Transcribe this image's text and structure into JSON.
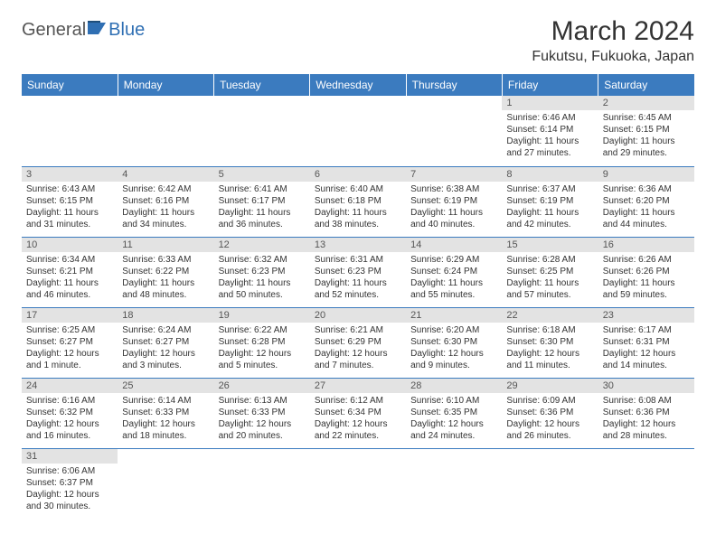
{
  "brand": {
    "part1": "General",
    "part2": "Blue"
  },
  "title": "March 2024",
  "location": "Fukutsu, Fukuoka, Japan",
  "colors": {
    "header_bg": "#3b7bbf",
    "header_fg": "#ffffff",
    "daynum_bg": "#e3e3e3",
    "cell_border": "#3b7bbf",
    "text": "#333333"
  },
  "daynames": [
    "Sunday",
    "Monday",
    "Tuesday",
    "Wednesday",
    "Thursday",
    "Friday",
    "Saturday"
  ],
  "weeks": [
    [
      null,
      null,
      null,
      null,
      null,
      {
        "n": "1",
        "sr": "Sunrise: 6:46 AM",
        "ss": "Sunset: 6:14 PM",
        "dl1": "Daylight: 11 hours",
        "dl2": "and 27 minutes."
      },
      {
        "n": "2",
        "sr": "Sunrise: 6:45 AM",
        "ss": "Sunset: 6:15 PM",
        "dl1": "Daylight: 11 hours",
        "dl2": "and 29 minutes."
      }
    ],
    [
      {
        "n": "3",
        "sr": "Sunrise: 6:43 AM",
        "ss": "Sunset: 6:15 PM",
        "dl1": "Daylight: 11 hours",
        "dl2": "and 31 minutes."
      },
      {
        "n": "4",
        "sr": "Sunrise: 6:42 AM",
        "ss": "Sunset: 6:16 PM",
        "dl1": "Daylight: 11 hours",
        "dl2": "and 34 minutes."
      },
      {
        "n": "5",
        "sr": "Sunrise: 6:41 AM",
        "ss": "Sunset: 6:17 PM",
        "dl1": "Daylight: 11 hours",
        "dl2": "and 36 minutes."
      },
      {
        "n": "6",
        "sr": "Sunrise: 6:40 AM",
        "ss": "Sunset: 6:18 PM",
        "dl1": "Daylight: 11 hours",
        "dl2": "and 38 minutes."
      },
      {
        "n": "7",
        "sr": "Sunrise: 6:38 AM",
        "ss": "Sunset: 6:19 PM",
        "dl1": "Daylight: 11 hours",
        "dl2": "and 40 minutes."
      },
      {
        "n": "8",
        "sr": "Sunrise: 6:37 AM",
        "ss": "Sunset: 6:19 PM",
        "dl1": "Daylight: 11 hours",
        "dl2": "and 42 minutes."
      },
      {
        "n": "9",
        "sr": "Sunrise: 6:36 AM",
        "ss": "Sunset: 6:20 PM",
        "dl1": "Daylight: 11 hours",
        "dl2": "and 44 minutes."
      }
    ],
    [
      {
        "n": "10",
        "sr": "Sunrise: 6:34 AM",
        "ss": "Sunset: 6:21 PM",
        "dl1": "Daylight: 11 hours",
        "dl2": "and 46 minutes."
      },
      {
        "n": "11",
        "sr": "Sunrise: 6:33 AM",
        "ss": "Sunset: 6:22 PM",
        "dl1": "Daylight: 11 hours",
        "dl2": "and 48 minutes."
      },
      {
        "n": "12",
        "sr": "Sunrise: 6:32 AM",
        "ss": "Sunset: 6:23 PM",
        "dl1": "Daylight: 11 hours",
        "dl2": "and 50 minutes."
      },
      {
        "n": "13",
        "sr": "Sunrise: 6:31 AM",
        "ss": "Sunset: 6:23 PM",
        "dl1": "Daylight: 11 hours",
        "dl2": "and 52 minutes."
      },
      {
        "n": "14",
        "sr": "Sunrise: 6:29 AM",
        "ss": "Sunset: 6:24 PM",
        "dl1": "Daylight: 11 hours",
        "dl2": "and 55 minutes."
      },
      {
        "n": "15",
        "sr": "Sunrise: 6:28 AM",
        "ss": "Sunset: 6:25 PM",
        "dl1": "Daylight: 11 hours",
        "dl2": "and 57 minutes."
      },
      {
        "n": "16",
        "sr": "Sunrise: 6:26 AM",
        "ss": "Sunset: 6:26 PM",
        "dl1": "Daylight: 11 hours",
        "dl2": "and 59 minutes."
      }
    ],
    [
      {
        "n": "17",
        "sr": "Sunrise: 6:25 AM",
        "ss": "Sunset: 6:27 PM",
        "dl1": "Daylight: 12 hours",
        "dl2": "and 1 minute."
      },
      {
        "n": "18",
        "sr": "Sunrise: 6:24 AM",
        "ss": "Sunset: 6:27 PM",
        "dl1": "Daylight: 12 hours",
        "dl2": "and 3 minutes."
      },
      {
        "n": "19",
        "sr": "Sunrise: 6:22 AM",
        "ss": "Sunset: 6:28 PM",
        "dl1": "Daylight: 12 hours",
        "dl2": "and 5 minutes."
      },
      {
        "n": "20",
        "sr": "Sunrise: 6:21 AM",
        "ss": "Sunset: 6:29 PM",
        "dl1": "Daylight: 12 hours",
        "dl2": "and 7 minutes."
      },
      {
        "n": "21",
        "sr": "Sunrise: 6:20 AM",
        "ss": "Sunset: 6:30 PM",
        "dl1": "Daylight: 12 hours",
        "dl2": "and 9 minutes."
      },
      {
        "n": "22",
        "sr": "Sunrise: 6:18 AM",
        "ss": "Sunset: 6:30 PM",
        "dl1": "Daylight: 12 hours",
        "dl2": "and 11 minutes."
      },
      {
        "n": "23",
        "sr": "Sunrise: 6:17 AM",
        "ss": "Sunset: 6:31 PM",
        "dl1": "Daylight: 12 hours",
        "dl2": "and 14 minutes."
      }
    ],
    [
      {
        "n": "24",
        "sr": "Sunrise: 6:16 AM",
        "ss": "Sunset: 6:32 PM",
        "dl1": "Daylight: 12 hours",
        "dl2": "and 16 minutes."
      },
      {
        "n": "25",
        "sr": "Sunrise: 6:14 AM",
        "ss": "Sunset: 6:33 PM",
        "dl1": "Daylight: 12 hours",
        "dl2": "and 18 minutes."
      },
      {
        "n": "26",
        "sr": "Sunrise: 6:13 AM",
        "ss": "Sunset: 6:33 PM",
        "dl1": "Daylight: 12 hours",
        "dl2": "and 20 minutes."
      },
      {
        "n": "27",
        "sr": "Sunrise: 6:12 AM",
        "ss": "Sunset: 6:34 PM",
        "dl1": "Daylight: 12 hours",
        "dl2": "and 22 minutes."
      },
      {
        "n": "28",
        "sr": "Sunrise: 6:10 AM",
        "ss": "Sunset: 6:35 PM",
        "dl1": "Daylight: 12 hours",
        "dl2": "and 24 minutes."
      },
      {
        "n": "29",
        "sr": "Sunrise: 6:09 AM",
        "ss": "Sunset: 6:36 PM",
        "dl1": "Daylight: 12 hours",
        "dl2": "and 26 minutes."
      },
      {
        "n": "30",
        "sr": "Sunrise: 6:08 AM",
        "ss": "Sunset: 6:36 PM",
        "dl1": "Daylight: 12 hours",
        "dl2": "and 28 minutes."
      }
    ],
    [
      {
        "n": "31",
        "sr": "Sunrise: 6:06 AM",
        "ss": "Sunset: 6:37 PM",
        "dl1": "Daylight: 12 hours",
        "dl2": "and 30 minutes."
      },
      null,
      null,
      null,
      null,
      null,
      null
    ]
  ]
}
